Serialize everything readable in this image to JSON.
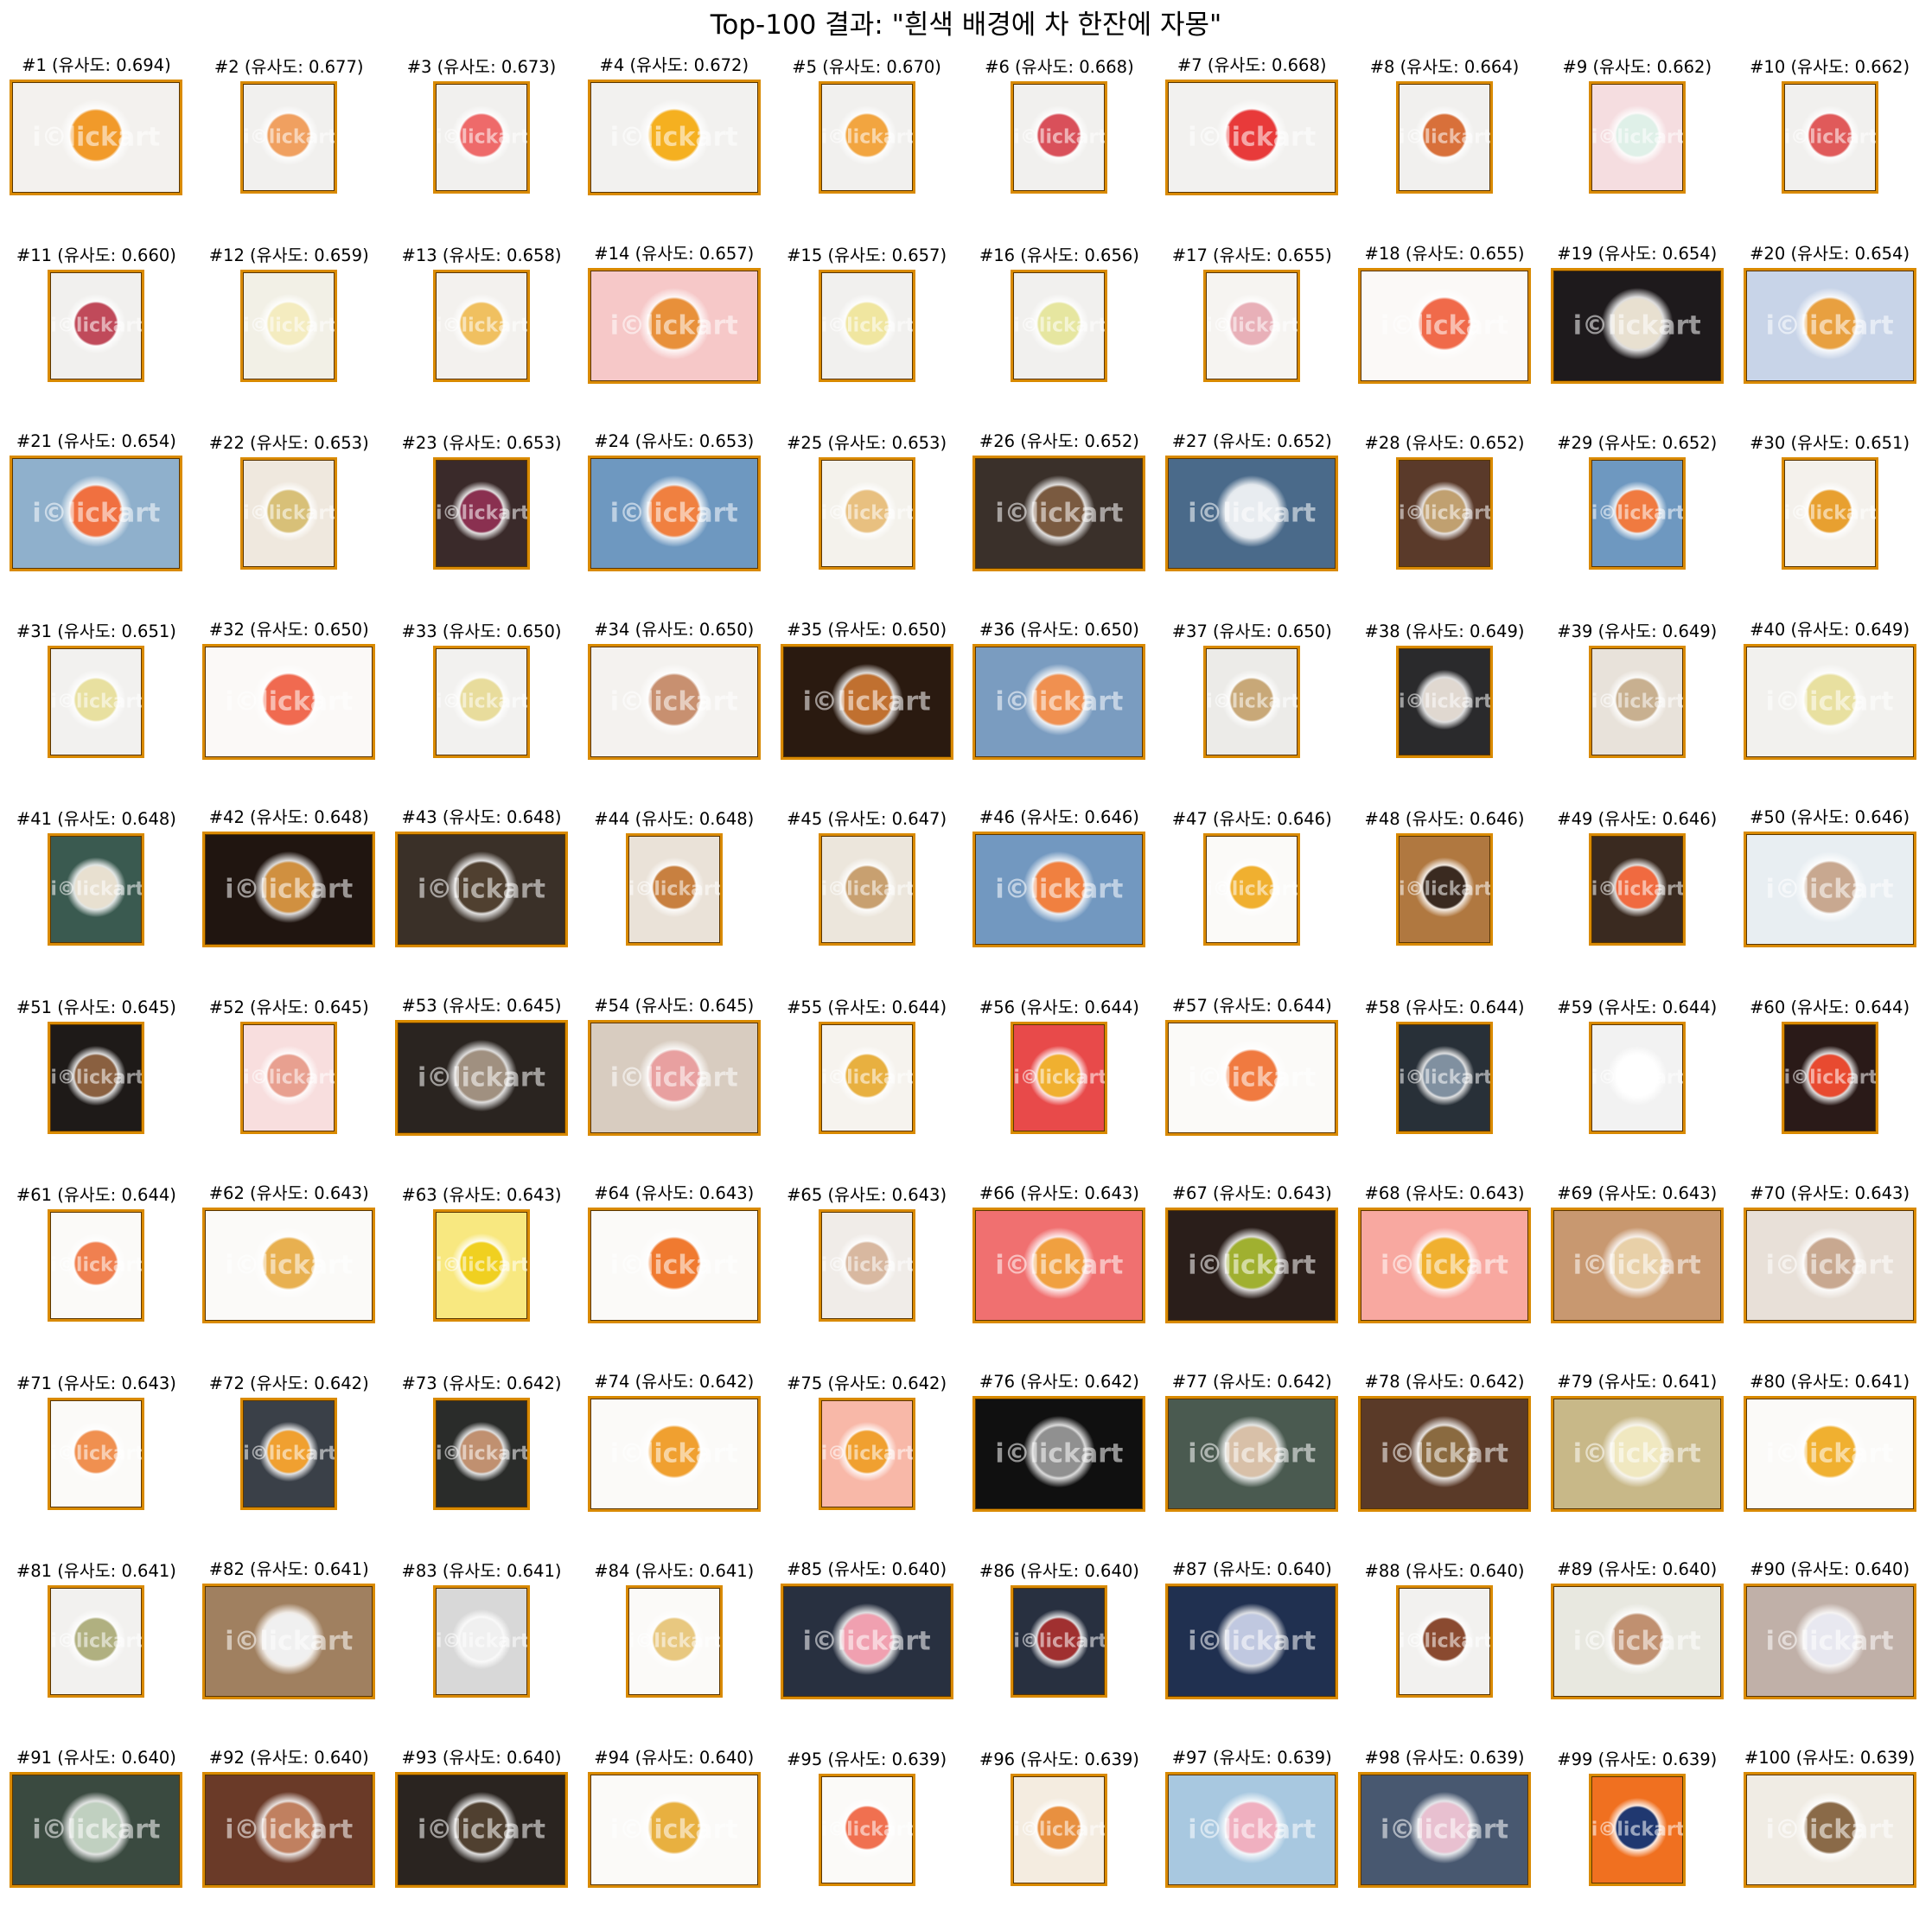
{
  "title": "Top-100 결과: \"흰색 배경에 차 한잔에 자몽\"",
  "watermark_text": "i©lickart",
  "frame_color": "#d98a00",
  "results": [
    {
      "caption": "#1 (유사도: 0.694)",
      "shape": "wide",
      "bg": "#f3f1ee",
      "fg": "#f19a2a"
    },
    {
      "caption": "#2 (유사도: 0.677)",
      "shape": "tall",
      "bg": "#f1f0ee",
      "fg": "#f0a060"
    },
    {
      "caption": "#3 (유사도: 0.673)",
      "shape": "tall",
      "bg": "#f1f0ee",
      "fg": "#ee6a6a"
    },
    {
      "caption": "#4 (유사도: 0.672)",
      "shape": "wide",
      "bg": "#f2f1ef",
      "fg": "#f5b020"
    },
    {
      "caption": "#5 (유사도: 0.670)",
      "shape": "tall",
      "bg": "#f1f0ee",
      "fg": "#f2a540"
    },
    {
      "caption": "#6 (유사도: 0.668)",
      "shape": "tall",
      "bg": "#f1f0ee",
      "fg": "#d9505a"
    },
    {
      "caption": "#7 (유사도: 0.668)",
      "shape": "wide",
      "bg": "#f2f1ef",
      "fg": "#e83a3a"
    },
    {
      "caption": "#8 (유사도: 0.664)",
      "shape": "tall",
      "bg": "#f1f0ee",
      "fg": "#d8703a"
    },
    {
      "caption": "#9 (유사도: 0.662)",
      "shape": "tall",
      "bg": "#f5dde0",
      "fg": "#dff0e8"
    },
    {
      "caption": "#10 (유사도: 0.662)",
      "shape": "tall",
      "bg": "#f1f0ee",
      "fg": "#e05a5a"
    },
    {
      "caption": "#11 (유사도: 0.660)",
      "shape": "tall",
      "bg": "#f1f0ee",
      "fg": "#c04a5a"
    },
    {
      "caption": "#12 (유사도: 0.659)",
      "shape": "tall",
      "bg": "#f2f0e6",
      "fg": "#f4ecc0"
    },
    {
      "caption": "#13 (유사도: 0.658)",
      "shape": "tall",
      "bg": "#f3f1ee",
      "fg": "#f0c060"
    },
    {
      "caption": "#14 (유사도: 0.657)",
      "shape": "wide",
      "bg": "#f6c8c8",
      "fg": "#e8903a"
    },
    {
      "caption": "#15 (유사도: 0.657)",
      "shape": "tall",
      "bg": "#f1f0ee",
      "fg": "#f0e6a0"
    },
    {
      "caption": "#16 (유사도: 0.656)",
      "shape": "tall",
      "bg": "#f1f0ee",
      "fg": "#e6e6a0"
    },
    {
      "caption": "#17 (유사도: 0.655)",
      "shape": "tall",
      "bg": "#f6f4f1",
      "fg": "#e8b0b8"
    },
    {
      "caption": "#18 (유사도: 0.655)",
      "shape": "wide",
      "bg": "#fbf9f7",
      "fg": "#f06a4a"
    },
    {
      "caption": "#19 (유사도: 0.654)",
      "shape": "wide",
      "bg": "#1e1a1c",
      "fg": "#e8e0d0"
    },
    {
      "caption": "#20 (유사도: 0.654)",
      "shape": "wide",
      "bg": "#c8d4e8",
      "fg": "#e8a040"
    },
    {
      "caption": "#21 (유사도: 0.654)",
      "shape": "wide",
      "bg": "#8fb0cc",
      "fg": "#f07040"
    },
    {
      "caption": "#22 (유사도: 0.653)",
      "shape": "tall",
      "bg": "#efe8de",
      "fg": "#d8c078"
    },
    {
      "caption": "#23 (유사도: 0.653)",
      "shape": "tall",
      "bg": "#3a2a2a",
      "fg": "#8a3050"
    },
    {
      "caption": "#24 (유사도: 0.653)",
      "shape": "wide",
      "bg": "#6e98c0",
      "fg": "#f08040"
    },
    {
      "caption": "#25 (유사도: 0.653)",
      "shape": "tall",
      "bg": "#f4f2ec",
      "fg": "#e8c080"
    },
    {
      "caption": "#26 (유사도: 0.652)",
      "shape": "wide",
      "bg": "#3a302a",
      "fg": "#7a5a40"
    },
    {
      "caption": "#27 (유사도: 0.652)",
      "shape": "wide",
      "bg": "#4a6a8a",
      "fg": "#e8ecf0"
    },
    {
      "caption": "#28 (유사도: 0.652)",
      "shape": "tall",
      "bg": "#5a3a2a",
      "fg": "#c0a070"
    },
    {
      "caption": "#29 (유사도: 0.652)",
      "shape": "tall",
      "bg": "#6e98c0",
      "fg": "#f07a40"
    },
    {
      "caption": "#30 (유사도: 0.651)",
      "shape": "tall",
      "bg": "#f4f1ec",
      "fg": "#e8a030"
    },
    {
      "caption": "#31 (유사도: 0.651)",
      "shape": "tall",
      "bg": "#f2f1ef",
      "fg": "#e8e0a0"
    },
    {
      "caption": "#32 (유사도: 0.650)",
      "shape": "wide",
      "bg": "#fbf9f7",
      "fg": "#f06a50"
    },
    {
      "caption": "#33 (유사도: 0.650)",
      "shape": "tall",
      "bg": "#f2f1ef",
      "fg": "#e8dc9c"
    },
    {
      "caption": "#34 (유사도: 0.650)",
      "shape": "wide",
      "bg": "#f4f2ef",
      "fg": "#c89070"
    },
    {
      "caption": "#35 (유사도: 0.650)",
      "shape": "wide",
      "bg": "#2a1a10",
      "fg": "#c07030"
    },
    {
      "caption": "#36 (유사도: 0.650)",
      "shape": "wide",
      "bg": "#7a9cc0",
      "fg": "#f09050"
    },
    {
      "caption": "#37 (유사도: 0.650)",
      "shape": "tall",
      "bg": "#ecebe8",
      "fg": "#c8a878"
    },
    {
      "caption": "#38 (유사도: 0.649)",
      "shape": "tall",
      "bg": "#2a2a2c",
      "fg": "#e0d8d0"
    },
    {
      "caption": "#39 (유사도: 0.649)",
      "shape": "tall",
      "bg": "#e8e2da",
      "fg": "#c8b090"
    },
    {
      "caption": "#40 (유사도: 0.649)",
      "shape": "wide",
      "bg": "#f2f1ee",
      "fg": "#e8e0a0"
    },
    {
      "caption": "#41 (유사도: 0.648)",
      "shape": "tall",
      "bg": "#3a5a50",
      "fg": "#e8e0d0"
    },
    {
      "caption": "#42 (유사도: 0.648)",
      "shape": "wide",
      "bg": "#201510",
      "fg": "#d09040"
    },
    {
      "caption": "#43 (유사도: 0.648)",
      "shape": "wide",
      "bg": "#3a3028",
      "fg": "#504030"
    },
    {
      "caption": "#44 (유사도: 0.648)",
      "shape": "tall",
      "bg": "#eae2d8",
      "fg": "#c88040"
    },
    {
      "caption": "#45 (유사도: 0.647)",
      "shape": "tall",
      "bg": "#ece6dc",
      "fg": "#c8a070"
    },
    {
      "caption": "#46 (유사도: 0.646)",
      "shape": "wide",
      "bg": "#7298c0",
      "fg": "#f08040"
    },
    {
      "caption": "#47 (유사도: 0.646)",
      "shape": "tall",
      "bg": "#fbfaf8",
      "fg": "#f0b030"
    },
    {
      "caption": "#48 (유사도: 0.646)",
      "shape": "tall",
      "bg": "#b07840",
      "fg": "#3a2a20"
    },
    {
      "caption": "#49 (유사도: 0.646)",
      "shape": "tall",
      "bg": "#3a2a20",
      "fg": "#f06a40"
    },
    {
      "caption": "#50 (유사도: 0.646)",
      "shape": "wide",
      "bg": "#e8eef2",
      "fg": "#c8a890"
    },
    {
      "caption": "#51 (유사도: 0.645)",
      "shape": "tall",
      "bg": "#1e1a18",
      "fg": "#8a6040"
    },
    {
      "caption": "#52 (유사도: 0.645)",
      "shape": "tall",
      "bg": "#f8dede",
      "fg": "#e8a090"
    },
    {
      "caption": "#53 (유사도: 0.645)",
      "shape": "wide",
      "bg": "#2a2420",
      "fg": "#a09080"
    },
    {
      "caption": "#54 (유사도: 0.645)",
      "shape": "wide",
      "bg": "#d8ccc0",
      "fg": "#e8a0a0"
    },
    {
      "caption": "#55 (유사도: 0.644)",
      "shape": "tall",
      "bg": "#f6f3ee",
      "fg": "#e8b040"
    },
    {
      "caption": "#56 (유사도: 0.644)",
      "shape": "tall",
      "bg": "#e84a4a",
      "fg": "#f0b030"
    },
    {
      "caption": "#57 (유사도: 0.644)",
      "shape": "wide",
      "bg": "#fbfaf8",
      "fg": "#f07a40"
    },
    {
      "caption": "#58 (유사도: 0.644)",
      "shape": "tall",
      "bg": "#283038",
      "fg": "#8090a0"
    },
    {
      "caption": "#59 (유사도: 0.644)",
      "shape": "tall",
      "bg": "#f2f2f2",
      "fg": "#ffffff"
    },
    {
      "caption": "#60 (유사도: 0.644)",
      "shape": "tall",
      "bg": "#2a1a18",
      "fg": "#e84a30"
    },
    {
      "caption": "#61 (유사도: 0.644)",
      "shape": "tall",
      "bg": "#fbfaf8",
      "fg": "#f08050"
    },
    {
      "caption": "#62 (유사도: 0.643)",
      "shape": "wide",
      "bg": "#fbfaf8",
      "fg": "#e8b050"
    },
    {
      "caption": "#63 (유사도: 0.643)",
      "shape": "tall",
      "bg": "#f8e880",
      "fg": "#f0d020"
    },
    {
      "caption": "#64 (유사도: 0.643)",
      "shape": "wide",
      "bg": "#fbfaf8",
      "fg": "#f07a30"
    },
    {
      "caption": "#65 (유사도: 0.643)",
      "shape": "tall",
      "bg": "#f0ece8",
      "fg": "#d8b8a0"
    },
    {
      "caption": "#66 (유사도: 0.643)",
      "shape": "wide",
      "bg": "#f07070",
      "fg": "#f0a040"
    },
    {
      "caption": "#67 (유사도: 0.643)",
      "shape": "wide",
      "bg": "#2a1e1a",
      "fg": "#a0b030"
    },
    {
      "caption": "#68 (유사도: 0.643)",
      "shape": "wide",
      "bg": "#f8a8a0",
      "fg": "#f0b030"
    },
    {
      "caption": "#69 (유사도: 0.643)",
      "shape": "wide",
      "bg": "#c89870",
      "fg": "#e8d0a8"
    },
    {
      "caption": "#70 (유사도: 0.643)",
      "shape": "wide",
      "bg": "#e8e0d8",
      "fg": "#c8a890"
    },
    {
      "caption": "#71 (유사도: 0.643)",
      "shape": "tall",
      "bg": "#fbfaf8",
      "fg": "#f09050"
    },
    {
      "caption": "#72 (유사도: 0.642)",
      "shape": "tall",
      "bg": "#3a4048",
      "fg": "#f0a030"
    },
    {
      "caption": "#73 (유사도: 0.642)",
      "shape": "tall",
      "bg": "#2a2c2a",
      "fg": "#c09070"
    },
    {
      "caption": "#74 (유사도: 0.642)",
      "shape": "wide",
      "bg": "#fbfaf8",
      "fg": "#f0a030"
    },
    {
      "caption": "#75 (유사도: 0.642)",
      "shape": "tall",
      "bg": "#f8b8a8",
      "fg": "#f0a030"
    },
    {
      "caption": "#76 (유사도: 0.642)",
      "shape": "wide",
      "bg": "#101010",
      "fg": "#909090"
    },
    {
      "caption": "#77 (유사도: 0.642)",
      "shape": "wide",
      "bg": "#4a5a50",
      "fg": "#d8c0a8"
    },
    {
      "caption": "#78 (유사도: 0.642)",
      "shape": "wide",
      "bg": "#5a3a28",
      "fg": "#8a6a40"
    },
    {
      "caption": "#79 (유사도: 0.641)",
      "shape": "wide",
      "bg": "#c8b888",
      "fg": "#f0e8c0"
    },
    {
      "caption": "#80 (유사도: 0.641)",
      "shape": "wide",
      "bg": "#fbfaf8",
      "fg": "#f0b030"
    },
    {
      "caption": "#81 (유사도: 0.641)",
      "shape": "tall",
      "bg": "#f2f1ef",
      "fg": "#b0b080"
    },
    {
      "caption": "#82 (유사도: 0.641)",
      "shape": "wide",
      "bg": "#a08060",
      "fg": "#f0f0f0"
    },
    {
      "caption": "#83 (유사도: 0.641)",
      "shape": "tall",
      "bg": "#d8d8d8",
      "fg": "#f0f0f0"
    },
    {
      "caption": "#84 (유사도: 0.641)",
      "shape": "tall",
      "bg": "#fbfaf8",
      "fg": "#e8c880"
    },
    {
      "caption": "#85 (유사도: 0.640)",
      "shape": "wide",
      "bg": "#283040",
      "fg": "#f0a0b0"
    },
    {
      "caption": "#86 (유사도: 0.640)",
      "shape": "tall",
      "bg": "#283040",
      "fg": "#a03030"
    },
    {
      "caption": "#87 (유사도: 0.640)",
      "shape": "wide",
      "bg": "#203050",
      "fg": "#c0c8e0"
    },
    {
      "caption": "#88 (유사도: 0.640)",
      "shape": "tall",
      "bg": "#f2f1ef",
      "fg": "#8a4a30"
    },
    {
      "caption": "#89 (유사도: 0.640)",
      "shape": "wide",
      "bg": "#e8e8e0",
      "fg": "#c09070"
    },
    {
      "caption": "#90 (유사도: 0.640)",
      "shape": "wide",
      "bg": "#c0b0a8",
      "fg": "#e8e8f0"
    },
    {
      "caption": "#91 (유사도: 0.640)",
      "shape": "wide",
      "bg": "#3a4a40",
      "fg": "#c0d0c0"
    },
    {
      "caption": "#92 (유사도: 0.640)",
      "shape": "wide",
      "bg": "#6a3a28",
      "fg": "#c08060"
    },
    {
      "caption": "#93 (유사도: 0.640)",
      "shape": "wide",
      "bg": "#2a2420",
      "fg": "#504030"
    },
    {
      "caption": "#94 (유사도: 0.640)",
      "shape": "wide",
      "bg": "#fbfaf8",
      "fg": "#e8b040"
    },
    {
      "caption": "#95 (유사도: 0.639)",
      "shape": "tall",
      "bg": "#fbfaf8",
      "fg": "#f07050"
    },
    {
      "caption": "#96 (유사도: 0.639)",
      "shape": "tall",
      "bg": "#f4ece0",
      "fg": "#e89040"
    },
    {
      "caption": "#97 (유사도: 0.639)",
      "shape": "wide",
      "bg": "#a8c8e0",
      "fg": "#f0b0c0"
    },
    {
      "caption": "#98 (유사도: 0.639)",
      "shape": "wide",
      "bg": "#485870",
      "fg": "#e8c0d0"
    },
    {
      "caption": "#99 (유사도: 0.639)",
      "shape": "tall",
      "bg": "#f07020",
      "fg": "#203870"
    },
    {
      "caption": "#100 (유사도: 0.639)",
      "shape": "wide",
      "bg": "#f0ece4",
      "fg": "#8a6a48"
    }
  ]
}
